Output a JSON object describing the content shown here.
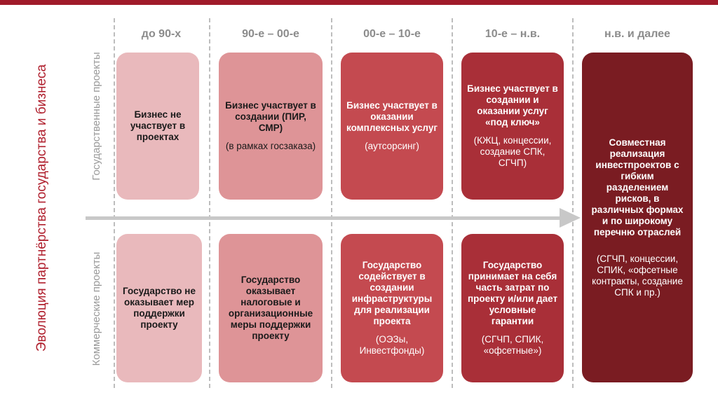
{
  "title": "Эволюция партнёрства государства и бизнеса",
  "rows": {
    "state": "Государственные проекты",
    "commercial": "Коммерческие проекты"
  },
  "periods": [
    "до 90-х",
    "90-е – 00-е",
    "00-е – 10-е",
    "10-е – н.в.",
    "н.в. и далее"
  ],
  "state_projects": [
    {
      "main": "Бизнес не участвует в проектах",
      "note": ""
    },
    {
      "main": "Бизнес участвует в создании (ПИР, СМР)",
      "note": "(в рамках госзаказа)"
    },
    {
      "main": "Бизнес участвует в оказании комплексных услуг",
      "note": "(аутсорсинг)"
    },
    {
      "main": "Бизнес участвует в создании и оказании услуг «под ключ»",
      "note": "(КЖЦ, концессии, создание СПК, СГЧП)"
    }
  ],
  "commercial_projects": [
    {
      "main": "Государство не оказывает мер поддержки проекту",
      "note": ""
    },
    {
      "main": "Государство оказывает налоговые и организационные меры поддержки проекту",
      "note": ""
    },
    {
      "main": "Государство содействует в создании инфраструктуры для реализации проекта",
      "note": "(ОЭЗы, Инвестфонды)"
    },
    {
      "main": "Государство принимает на себя часть затрат по проекту и/или дает условные гарантии",
      "note": "(СГЧП, СПИК, «офсетные»)"
    }
  ],
  "future": {
    "main": "Совместная реализация инвестпроектов с гибким разделением рисков, в различных формах и по широкому перечню отраслей",
    "note": "(СГЧП, концессии, СПИК, «офсетные контракты, создание СПК и пр.)"
  },
  "colors": {
    "accent": "#a01b2a",
    "stage1": "#e9b9bc",
    "stage2": "#de9497",
    "stage3": "#c44a50",
    "stage4": "#a92f38",
    "stage5": "#7a1c22",
    "arrow": "#c8c8c8"
  }
}
